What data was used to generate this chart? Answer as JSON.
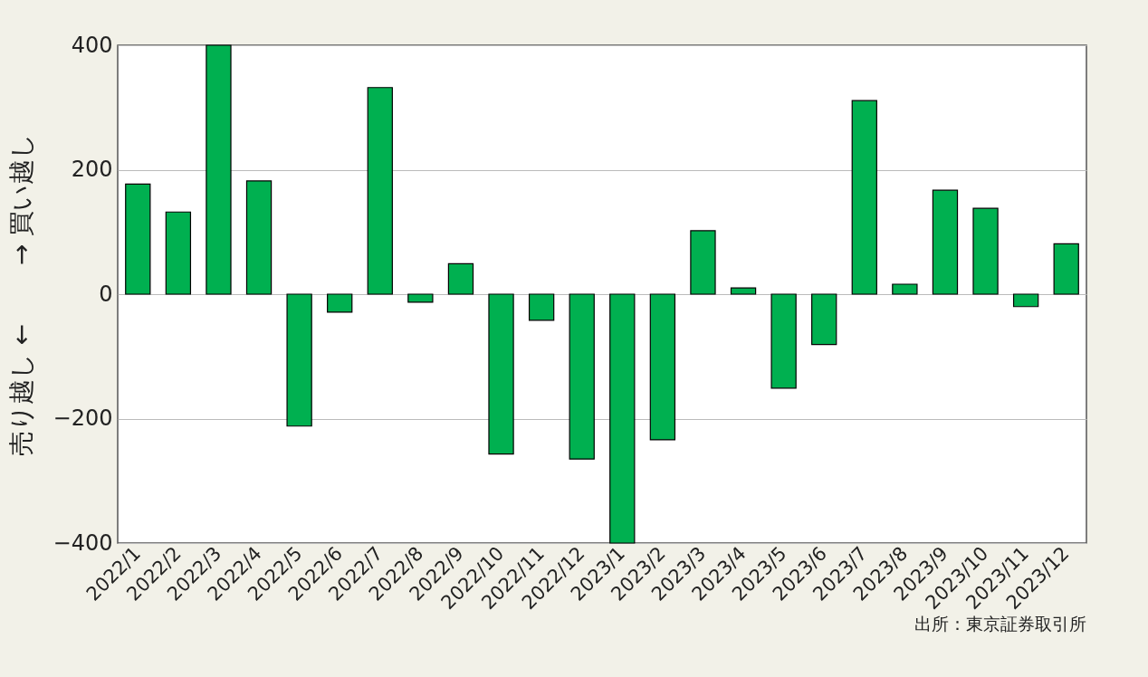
{
  "chart_data": {
    "type": "bar",
    "ylabel": "売り越し ←　　 → 買い越し",
    "categories": [
      "2022/1",
      "2022/2",
      "2022/3",
      "2022/4",
      "2022/5",
      "2022/6",
      "2022/7",
      "2022/8",
      "2022/9",
      "2022/10",
      "2022/11",
      "2022/12",
      "2023/1",
      "2023/2",
      "2023/3",
      "2023/4",
      "2023/5",
      "2023/6",
      "2023/7",
      "2023/8",
      "2023/9",
      "2023/10",
      "2023/11",
      "2023/12"
    ],
    "values": [
      177,
      132,
      400,
      182,
      -212,
      -29,
      332,
      -13,
      49,
      -257,
      -42,
      -265,
      -400,
      -234,
      102,
      10,
      -151,
      -81,
      311,
      16,
      167,
      138,
      -20,
      81
    ],
    "color": "#00b050",
    "ylim": [
      -400,
      400
    ],
    "yticks": [
      -400,
      -200,
      0,
      200,
      400
    ],
    "grid": "y",
    "annotations": [
      "出所：東京証券取引所"
    ]
  }
}
